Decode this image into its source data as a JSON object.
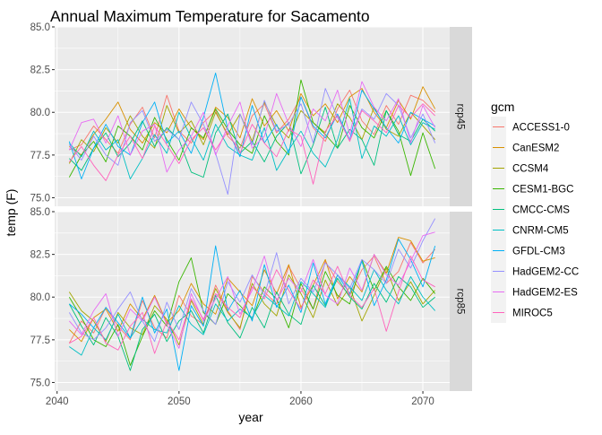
{
  "chart_data": {
    "type": "line",
    "title": "Annual Maximum Temperature for Sacamento",
    "xlabel": "year",
    "ylabel": "temp (F)",
    "xlim": [
      2039.8,
      2072.2
    ],
    "ylim": [
      74.5,
      85.0
    ],
    "x_ticks": [
      2040,
      2050,
      2060,
      2070
    ],
    "x_tick_labels": [
      "2040",
      "2050",
      "2060",
      "2070"
    ],
    "y_ticks": [
      75.0,
      77.5,
      80.0,
      82.5,
      85.0
    ],
    "y_tick_labels": [
      "75.0",
      "77.5",
      "80.0",
      "82.5",
      "85.0"
    ],
    "grid": true,
    "legend_position": "right",
    "legend_title": "gcm",
    "facet_labels": [
      "rcp45",
      "rcp85"
    ],
    "years": [
      2041,
      2042,
      2043,
      2044,
      2045,
      2046,
      2047,
      2048,
      2049,
      2050,
      2051,
      2052,
      2053,
      2054,
      2055,
      2056,
      2057,
      2058,
      2059,
      2060,
      2061,
      2062,
      2063,
      2064,
      2065,
      2066,
      2067,
      2068,
      2069,
      2070,
      2071
    ],
    "series": [
      {
        "name": "ACCESS1-0",
        "color": "#F8766D",
        "rcp45": [
          77.8,
          78.1,
          79.2,
          78.4,
          77.6,
          79.3,
          80.3,
          78.5,
          81.0,
          78.9,
          78.2,
          79.4,
          80.1,
          78.6,
          77.9,
          79.8,
          80.5,
          78.8,
          79.6,
          80.9,
          79.1,
          78.3,
          80.2,
          81.3,
          79.5,
          78.7,
          80.4,
          79.3,
          81.0,
          80.7,
          80.0
        ],
        "rcp85": [
          77.3,
          78.6,
          77.9,
          79.4,
          78.3,
          77.5,
          79.8,
          78.2,
          77.6,
          80.1,
          78.9,
          78.4,
          80.7,
          79.2,
          78.1,
          81.2,
          80.3,
          79.6,
          81.8,
          80.5,
          79.3,
          82.1,
          80.9,
          80.1,
          81.6,
          82.4,
          80.8,
          81.5,
          83.2,
          82.0,
          82.8
        ]
      },
      {
        "name": "CanESM2",
        "color": "#D89000",
        "rcp45": [
          78.0,
          77.5,
          78.7,
          79.6,
          80.6,
          79.0,
          78.2,
          79.4,
          78.8,
          80.2,
          79.1,
          78.4,
          80.3,
          79.7,
          78.5,
          80.8,
          79.2,
          80.1,
          78.9,
          81.1,
          79.8,
          80.5,
          79.4,
          80.9,
          81.4,
          80.0,
          79.1,
          80.7,
          79.6,
          81.5,
          80.2
        ],
        "rcp85": [
          78.1,
          77.4,
          78.8,
          79.3,
          78.0,
          79.6,
          78.7,
          80.1,
          78.5,
          79.2,
          80.8,
          79.6,
          79.0,
          81.1,
          80.3,
          79.5,
          81.6,
          80.2,
          81.9,
          79.4,
          80.7,
          82.2,
          79.9,
          81.2,
          80.3,
          82.5,
          81.4,
          83.5,
          83.3,
          82.1,
          82.3
        ]
      },
      {
        "name": "CCSM4",
        "color": "#A3A500",
        "rcp45": [
          77.0,
          78.4,
          77.7,
          79.1,
          78.2,
          79.8,
          78.6,
          77.9,
          80.4,
          78.8,
          79.5,
          78.1,
          80.0,
          78.7,
          79.9,
          78.3,
          80.6,
          79.2,
          78.5,
          80.1,
          79.4,
          78.8,
          80.5,
          79.7,
          78.4,
          80.3,
          79.0,
          78.6,
          80.0,
          79.2,
          78.4
        ],
        "rcp85": [
          80.3,
          79.2,
          78.6,
          77.4,
          79.1,
          78.2,
          77.8,
          79.5,
          78.7,
          77.2,
          79.8,
          78.4,
          80.5,
          79.1,
          78.2,
          80.8,
          79.6,
          78.9,
          81.3,
          80.2,
          78.8,
          81.0,
          79.5,
          80.6,
          78.6,
          80.1,
          81.7,
          79.8,
          80.9,
          79.6,
          80.4
        ]
      },
      {
        "name": "CESM1-BGC",
        "color": "#39B600",
        "rcp45": [
          76.2,
          77.5,
          78.3,
          77.1,
          79.2,
          78.6,
          77.8,
          79.7,
          78.4,
          77.2,
          79.1,
          78.5,
          80.2,
          79.0,
          78.1,
          77.6,
          79.8,
          78.3,
          77.5,
          81.9,
          79.4,
          78.7,
          77.9,
          80.4,
          79.1,
          78.5,
          80.1,
          78.9,
          76.3,
          78.8,
          76.7
        ],
        "rcp85": [
          80.0,
          78.8,
          77.5,
          77.1,
          78.4,
          76.0,
          77.7,
          79.2,
          78.3,
          80.9,
          82.3,
          79.1,
          78.4,
          80.2,
          79.5,
          78.7,
          80.6,
          79.9,
          78.2,
          80.8,
          79.3,
          81.5,
          80.1,
          79.6,
          82.2,
          80.4,
          81.8,
          80.6,
          79.8,
          81.1,
          80.2
        ]
      },
      {
        "name": "CMCC-CMS",
        "color": "#00BF7D",
        "rcp45": [
          77.3,
          76.6,
          77.9,
          78.8,
          77.4,
          78.2,
          79.5,
          78.0,
          79.1,
          78.4,
          76.5,
          76.2,
          78.8,
          79.9,
          77.6,
          78.3,
          77.1,
          78.6,
          79.4,
          76.4,
          78.1,
          80.3,
          77.9,
          79.0,
          78.4,
          76.9,
          80.1,
          78.7,
          78.3,
          79.6,
          78.9
        ],
        "rcp85": [
          79.6,
          78.3,
          77.2,
          78.8,
          77.7,
          75.7,
          78.1,
          79.0,
          77.4,
          78.6,
          79.2,
          77.9,
          80.1,
          78.5,
          77.6,
          79.4,
          78.2,
          80.3,
          79.0,
          78.4,
          80.7,
          79.5,
          81.1,
          80.0,
          79.3,
          80.8,
          79.7,
          81.2,
          80.6,
          79.4,
          80.0
        ]
      },
      {
        "name": "CNRM-CM5",
        "color": "#00BFC4",
        "rcp45": [
          78.2,
          77.4,
          78.9,
          77.8,
          78.4,
          76.1,
          77.3,
          78.7,
          77.6,
          80.0,
          78.5,
          77.2,
          79.3,
          78.0,
          77.5,
          77.2,
          79.1,
          76.6,
          77.8,
          78.9,
          77.6,
          76.8,
          78.4,
          80.8,
          77.3,
          79.2,
          78.6,
          79.8,
          78.1,
          79.4,
          79.0
        ],
        "rcp85": [
          77.1,
          76.6,
          78.2,
          77.5,
          79.0,
          77.6,
          78.7,
          78.1,
          77.9,
          79.5,
          78.4,
          77.8,
          79.6,
          78.6,
          79.3,
          78.8,
          80.1,
          79.5,
          78.9,
          80.9,
          80.2,
          79.4,
          81.3,
          80.6,
          79.8,
          81.6,
          80.4,
          79.6,
          81.2,
          80.0,
          79.2
        ]
      },
      {
        "name": "GFDL-CM3",
        "color": "#00B0F6",
        "rcp45": [
          78.3,
          76.1,
          77.9,
          79.3,
          78.0,
          77.5,
          79.4,
          80.6,
          78.2,
          78.9,
          77.6,
          79.7,
          82.3,
          79.0,
          77.4,
          80.4,
          78.2,
          79.3,
          77.6,
          80.9,
          79.2,
          78.5,
          79.9,
          78.4,
          81.3,
          80.2,
          79.1,
          78.2,
          80.0,
          79.6,
          79.2
        ],
        "rcp85": [
          79.6,
          79.0,
          78.2,
          79.4,
          78.5,
          77.6,
          80.0,
          77.9,
          79.3,
          75.7,
          79.5,
          78.3,
          83.0,
          79.2,
          80.4,
          78.6,
          81.9,
          79.4,
          80.7,
          79.1,
          82.0,
          79.6,
          81.3,
          80.2,
          82.1,
          79.5,
          81.0,
          83.4,
          82.2,
          80.6,
          83.0
        ]
      },
      {
        "name": "HadGEM2-CC",
        "color": "#9590FF",
        "rcp45": [
          78.1,
          77.2,
          78.6,
          77.5,
          76.9,
          79.4,
          80.1,
          78.3,
          79.0,
          78.4,
          80.6,
          79.3,
          77.6,
          75.2,
          79.9,
          78.1,
          80.7,
          78.9,
          79.3,
          80.5,
          78.2,
          81.4,
          79.7,
          78.4,
          80.2,
          79.6,
          81.1,
          80.4,
          78.5,
          79.9,
          78.2
        ],
        "rcp85": [
          79.1,
          77.9,
          77.5,
          78.2,
          79.3,
          80.3,
          78.6,
          77.4,
          79.7,
          78.1,
          80.5,
          79.2,
          78.4,
          80.9,
          79.7,
          81.3,
          80.1,
          82.6,
          79.6,
          81.1,
          80.3,
          82.0,
          81.3,
          80.5,
          82.2,
          81.6,
          80.8,
          82.8,
          81.7,
          83.3,
          84.6
        ]
      },
      {
        "name": "HadGEM2-ES",
        "color": "#E76BF3",
        "rcp45": [
          77.8,
          79.4,
          79.6,
          78.2,
          79.8,
          77.5,
          78.9,
          79.3,
          76.5,
          77.8,
          78.6,
          80.0,
          77.5,
          79.2,
          80.6,
          77.9,
          78.6,
          81.1,
          79.3,
          78.0,
          80.2,
          79.5,
          81.3,
          78.7,
          81.8,
          80.3,
          79.5,
          80.8,
          78.2,
          80.4,
          79.1
        ],
        "rcp85": [
          78.6,
          77.8,
          79.2,
          80.2,
          77.7,
          79.3,
          78.6,
          80.0,
          78.4,
          77.0,
          80.2,
          78.6,
          79.9,
          81.2,
          79.0,
          80.4,
          82.4,
          79.8,
          81.1,
          80.3,
          82.2,
          80.1,
          79.6,
          81.7,
          80.4,
          82.5,
          81.3,
          80.7,
          82.1,
          83.6,
          83.8
        ]
      },
      {
        "name": "MIROC5",
        "color": "#FF62BC",
        "rcp45": [
          77.1,
          78.0,
          76.9,
          76.0,
          77.5,
          78.6,
          77.3,
          79.2,
          78.1,
          77.0,
          78.4,
          79.1,
          77.8,
          78.9,
          77.6,
          79.3,
          78.2,
          77.4,
          79.0,
          78.6,
          75.8,
          78.9,
          79.8,
          78.3,
          80.1,
          79.5,
          78.8,
          80.4,
          79.7,
          80.5,
          79.8
        ],
        "rcp85": [
          77.3,
          77.7,
          78.8,
          77.3,
          76.9,
          78.3,
          79.1,
          76.7,
          78.6,
          77.5,
          79.9,
          78.7,
          80.2,
          79.4,
          78.8,
          80.6,
          79.9,
          81.6,
          80.4,
          79.3,
          81.0,
          80.2,
          81.8,
          80.1,
          79.4,
          80.5,
          78.0,
          80.3,
          82.4,
          81.0,
          80.6
        ]
      }
    ]
  }
}
